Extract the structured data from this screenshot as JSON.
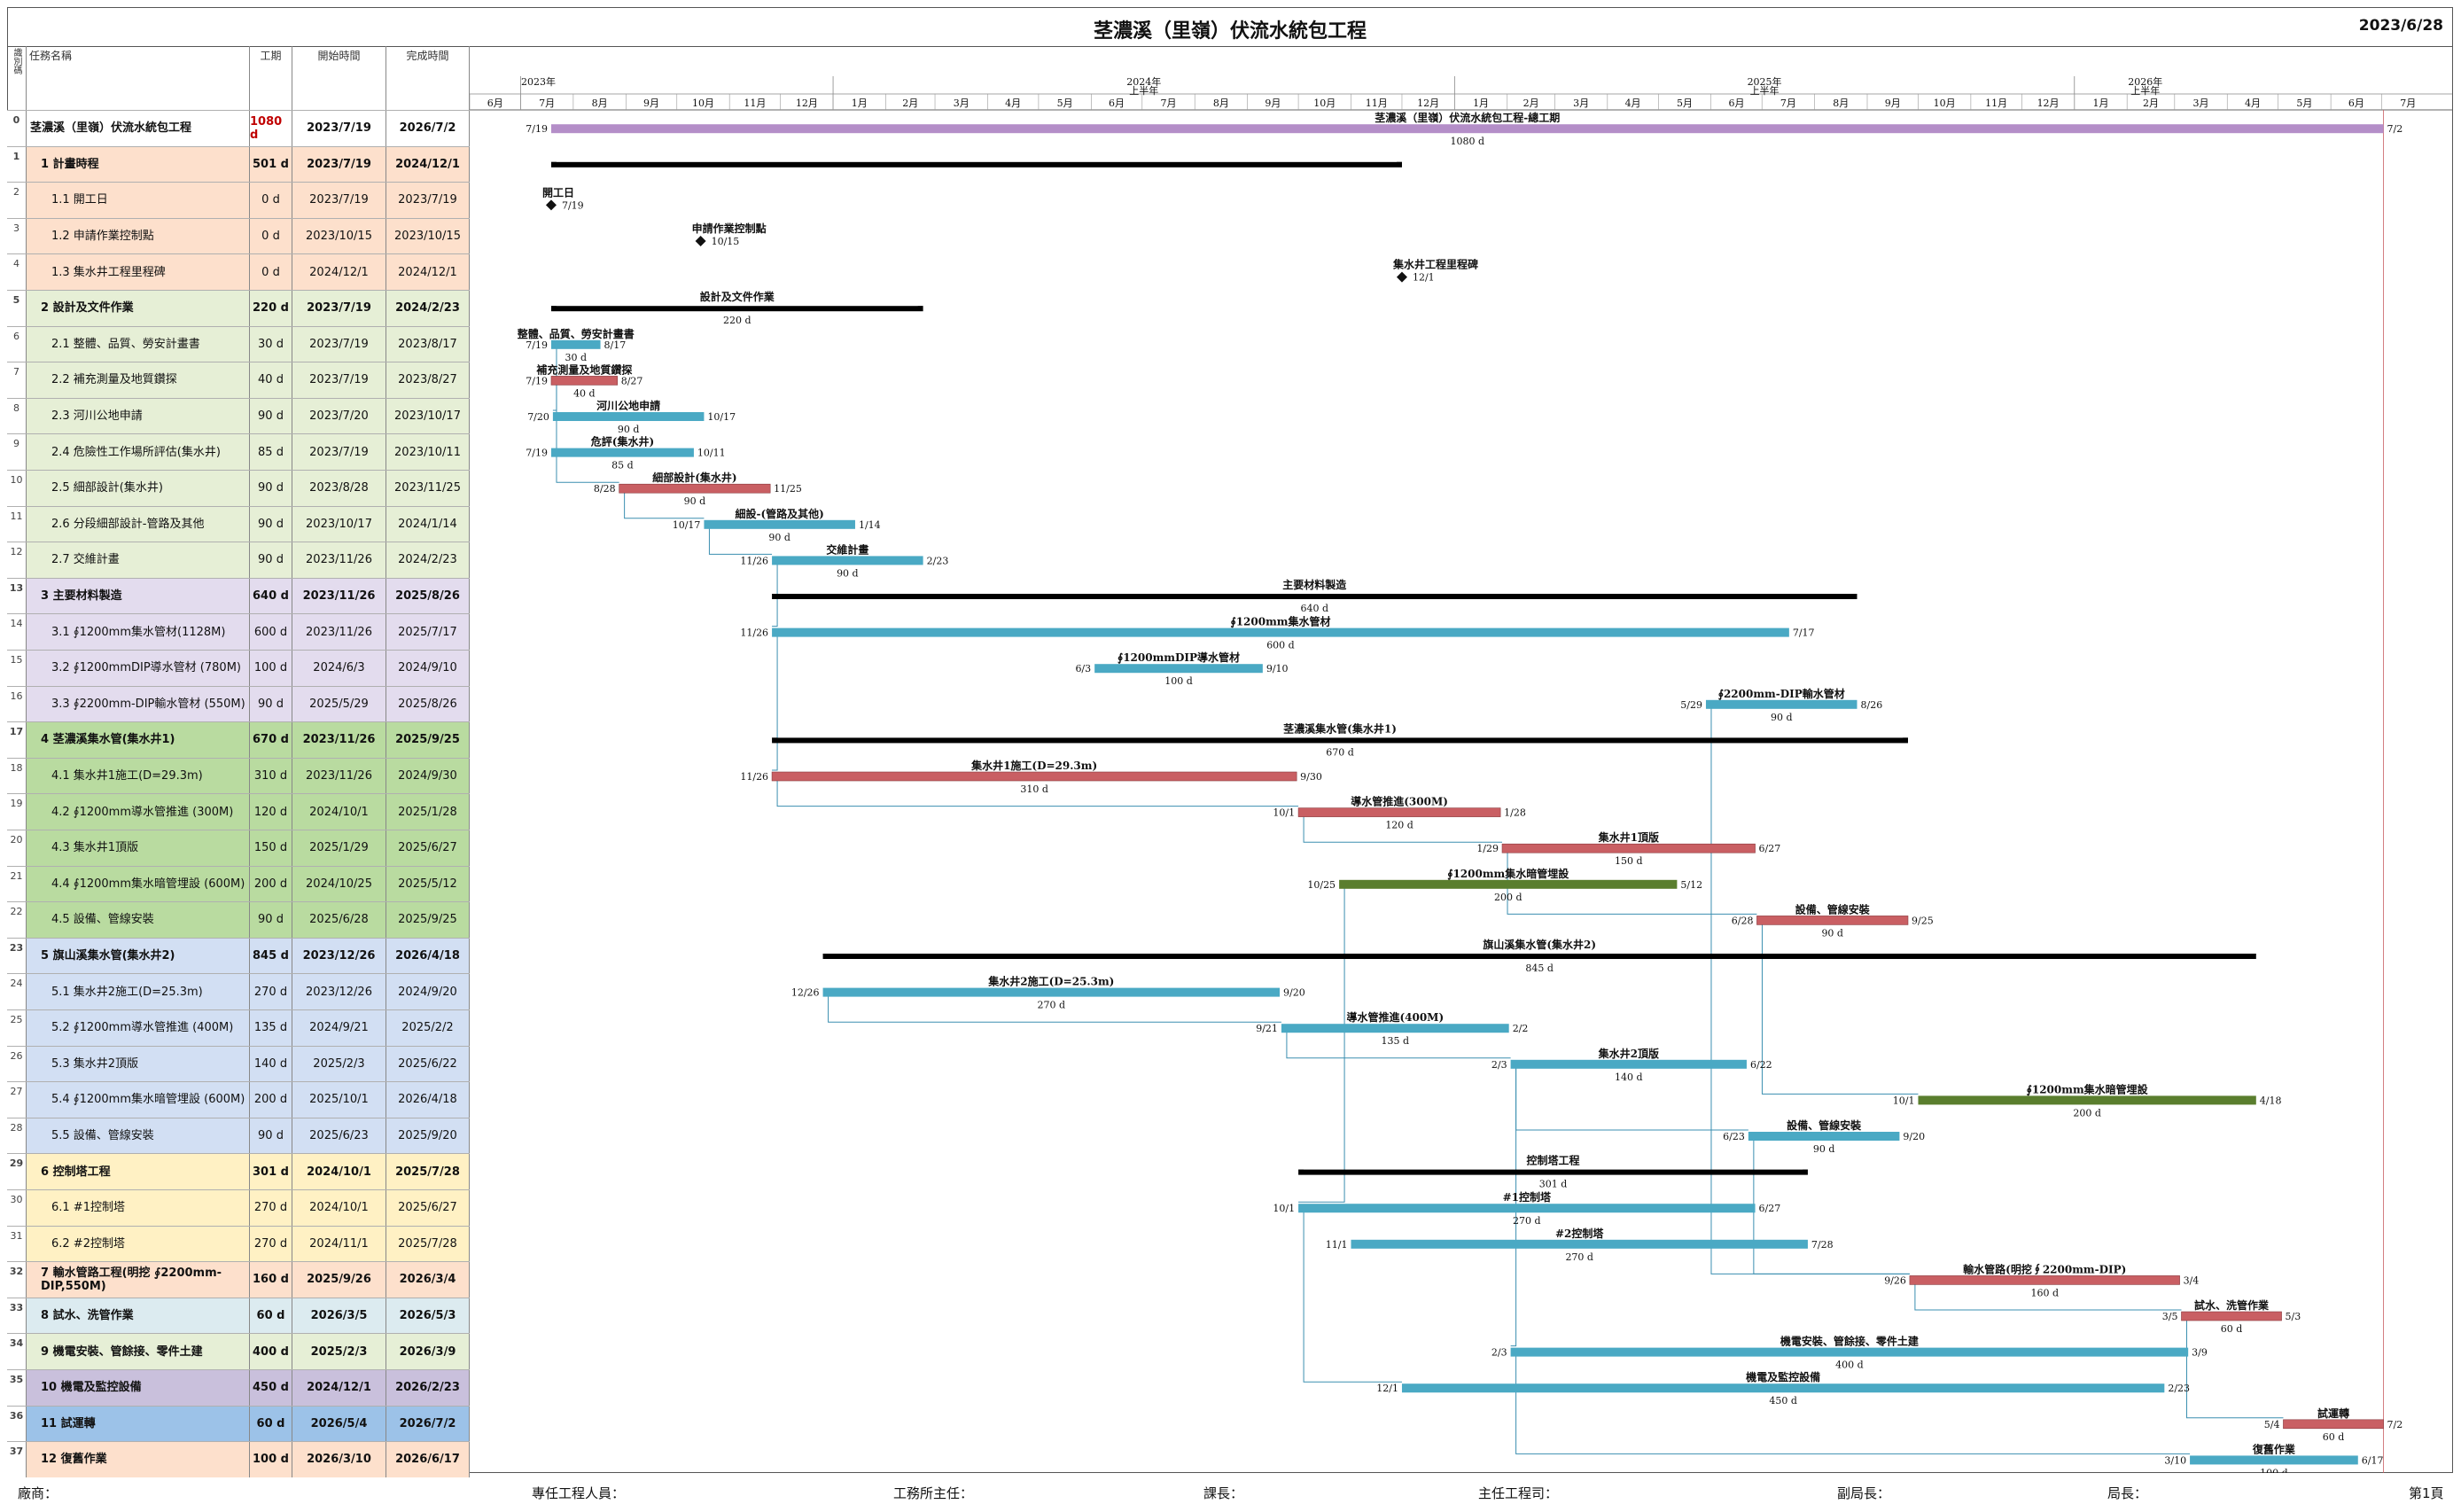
{
  "header": {
    "title": "茎濃溪（里嶺）伏流水統包工程",
    "date": "2023/6/28"
  },
  "table_headers": {
    "id": "識別碼",
    "name": "任務名稱",
    "duration": "工期",
    "start": "開始時間",
    "finish": "完成時間"
  },
  "timeline": {
    "years": [
      {
        "label": "2023年",
        "half": "",
        "date": "2023-07-01"
      },
      {
        "label": "2024年",
        "half": "上半年",
        "date": "2024-01-01"
      },
      {
        "label": "2025年",
        "half": "上半年",
        "date": "2025-01-01"
      },
      {
        "label": "2026年",
        "half": "上半年",
        "date": "2026-01-01"
      }
    ],
    "months": [
      "6月",
      "7月",
      "8月",
      "9月",
      "10月",
      "11月",
      "12月",
      "1月",
      "2月",
      "3月",
      "4月",
      "5月",
      "6月",
      "7月",
      "8月",
      "9月",
      "10月",
      "11月",
      "12月",
      "1月",
      "2月",
      "3月",
      "4月",
      "5月",
      "6月",
      "7月",
      "8月",
      "9月",
      "10月",
      "11月",
      "12月",
      "1月",
      "2月",
      "3月",
      "4月",
      "5月",
      "6月",
      "7月"
    ]
  },
  "colors": {
    "summary_bar": "#000000",
    "project_bar": "#b48ec8",
    "task_blue": "#4aa9c4",
    "task_red": "#c95f63",
    "task_green": "#5a7e2e",
    "link": "#3b8fb0",
    "group_plan": "#fde0cc",
    "group_design": "#e6efd6",
    "group_material": "#e3dcee",
    "group_well1": "#b9dba0",
    "group_well2": "#d2dff3",
    "group_tower": "#fff1c4",
    "group_pipe": "#fde0cc",
    "group_wash": "#dcebf0",
    "group_mech": "#e6efd6",
    "group_monitor": "#c9c0dc",
    "group_trial": "#9cc2e8",
    "group_restore": "#fde0cc"
  },
  "tasks": [
    {
      "id": "0",
      "name": "茎濃溪（里嶺）伏流水統包工程",
      "dur": "1080 d",
      "start": "2023/7/19",
      "finish": "2026/7/2",
      "s": "2023-07-19",
      "f": "2026-07-02",
      "type": "project",
      "bar_label": "茎濃溪（里嶺）伏流水統包工程-總工期",
      "bl": "7/19",
      "br": "7/2",
      "group": "none",
      "summary": true
    },
    {
      "id": "1",
      "name": "1 計畫時程",
      "dur": "501 d",
      "start": "2023/7/19",
      "finish": "2024/12/1",
      "s": "2023-07-19",
      "f": "2024-12-01",
      "type": "summary",
      "bar_label": "",
      "bl": "",
      "br": "",
      "group": "plan",
      "summary": true,
      "hide_dur": true
    },
    {
      "id": "2",
      "name": "1.1 開工日",
      "dur": "0 d",
      "start": "2023/7/19",
      "finish": "2023/7/19",
      "s": "2023-07-19",
      "f": "2023-07-19",
      "type": "milestone",
      "bar_label": "開工日",
      "bl": "",
      "br": "7/19",
      "group": "plan"
    },
    {
      "id": "3",
      "name": "1.2 申請作業控制點",
      "dur": "0 d",
      "start": "2023/10/15",
      "finish": "2023/10/15",
      "s": "2023-10-15",
      "f": "2023-10-15",
      "type": "milestone",
      "bar_label": "申請作業控制點",
      "bl": "",
      "br": "10/15",
      "group": "plan"
    },
    {
      "id": "4",
      "name": "1.3 集水井工程里程碑",
      "dur": "0 d",
      "start": "2024/12/1",
      "finish": "2024/12/1",
      "s": "2024-12-01",
      "f": "2024-12-01",
      "type": "milestone",
      "bar_label": "集水井工程里程碑",
      "bl": "",
      "br": "12/1",
      "group": "plan"
    },
    {
      "id": "5",
      "name": "2 設計及文件作業",
      "dur": "220 d",
      "start": "2023/7/19",
      "finish": "2024/2/23",
      "s": "2023-07-19",
      "f": "2024-02-23",
      "type": "summary",
      "bar_label": "設計及文件作業",
      "bl": "",
      "br": "",
      "group": "design",
      "summary": true
    },
    {
      "id": "6",
      "name": "2.1 整體、品質、勞安計畫書",
      "dur": "30 d",
      "start": "2023/7/19",
      "finish": "2023/8/17",
      "s": "2023-07-19",
      "f": "2023-08-17",
      "type": "blue",
      "bar_label": "整體、品質、勞安計畫書",
      "bl": "7/19",
      "br": "8/17",
      "group": "design"
    },
    {
      "id": "7",
      "name": "2.2 補充測量及地質鑽探",
      "dur": "40 d",
      "start": "2023/7/19",
      "finish": "2023/8/27",
      "s": "2023-07-19",
      "f": "2023-08-27",
      "type": "red",
      "bar_label": "補充測量及地質鑽探",
      "bl": "7/19",
      "br": "8/27",
      "group": "design"
    },
    {
      "id": "8",
      "name": "2.3 河川公地申請",
      "dur": "90 d",
      "start": "2023/7/20",
      "finish": "2023/10/17",
      "s": "2023-07-20",
      "f": "2023-10-17",
      "type": "blue",
      "bar_label": "河川公地申請",
      "bl": "7/20",
      "br": "10/17",
      "group": "design"
    },
    {
      "id": "9",
      "name": "2.4 危險性工作場所評估(集水井)",
      "dur": "85 d",
      "start": "2023/7/19",
      "finish": "2023/10/11",
      "s": "2023-07-19",
      "f": "2023-10-11",
      "type": "blue",
      "bar_label": "危評(集水井)",
      "bl": "7/19",
      "br": "10/11",
      "group": "design"
    },
    {
      "id": "10",
      "name": "2.5 細部設計(集水井)",
      "dur": "90 d",
      "start": "2023/8/28",
      "finish": "2023/11/25",
      "s": "2023-08-28",
      "f": "2023-11-25",
      "type": "red",
      "bar_label": "細部設計(集水井)",
      "bl": "8/28",
      "br": "11/25",
      "group": "design"
    },
    {
      "id": "11",
      "name": "2.6 分段細部設計-管路及其他",
      "dur": "90 d",
      "start": "2023/10/17",
      "finish": "2024/1/14",
      "s": "2023-10-17",
      "f": "2024-01-14",
      "type": "blue",
      "bar_label": "細設-(管路及其他)",
      "bl": "10/17",
      "br": "1/14",
      "group": "design"
    },
    {
      "id": "12",
      "name": "2.7 交維計畫",
      "dur": "90 d",
      "start": "2023/11/26",
      "finish": "2024/2/23",
      "s": "2023-11-26",
      "f": "2024-02-23",
      "type": "blue",
      "bar_label": "交維計畫",
      "bl": "11/26",
      "br": "2/23",
      "group": "design"
    },
    {
      "id": "13",
      "name": "3 主要材料製造",
      "dur": "640 d",
      "start": "2023/11/26",
      "finish": "2025/8/26",
      "s": "2023-11-26",
      "f": "2025-08-26",
      "type": "summary",
      "bar_label": "主要材料製造",
      "bl": "",
      "br": "",
      "group": "material",
      "summary": true
    },
    {
      "id": "14",
      "name": "3.1 ∮1200mm集水管材(1128M)",
      "dur": "600 d",
      "start": "2023/11/26",
      "finish": "2025/7/17",
      "s": "2023-11-26",
      "f": "2025-07-17",
      "type": "blue",
      "bar_label": "∮1200mm集水管材",
      "bl": "11/26",
      "br": "7/17",
      "group": "material"
    },
    {
      "id": "15",
      "name": "3.2 ∮1200mmDIP導水管材 (780M)",
      "dur": "100 d",
      "start": "2024/6/3",
      "finish": "2024/9/10",
      "s": "2024-06-03",
      "f": "2024-09-10",
      "type": "blue",
      "bar_label": "∮1200mmDIP導水管材",
      "bl": "6/3",
      "br": "9/10",
      "group": "material"
    },
    {
      "id": "16",
      "name": "3.3 ∮2200mm-DIP輸水管材 (550M)",
      "dur": "90 d",
      "start": "2025/5/29",
      "finish": "2025/8/26",
      "s": "2025-05-29",
      "f": "2025-08-26",
      "type": "blue",
      "bar_label": "∮2200mm-DIP輸水管材",
      "bl": "5/29",
      "br": "8/26",
      "group": "material"
    },
    {
      "id": "17",
      "name": "4 茎濃溪集水管(集水井1)",
      "dur": "670 d",
      "start": "2023/11/26",
      "finish": "2025/9/25",
      "s": "2023-11-26",
      "f": "2025-09-25",
      "type": "summary",
      "bar_label": "茎濃溪集水管(集水井1)",
      "bl": "",
      "br": "",
      "group": "well1",
      "summary": true
    },
    {
      "id": "18",
      "name": "4.1 集水井1施工(D=29.3m)",
      "dur": "310 d",
      "start": "2023/11/26",
      "finish": "2024/9/30",
      "s": "2023-11-26",
      "f": "2024-09-30",
      "type": "red",
      "bar_label": "集水井1施工(D=29.3m)",
      "bl": "11/26",
      "br": "9/30",
      "group": "well1"
    },
    {
      "id": "19",
      "name": "4.2 ∮1200mm導水管推進 (300M)",
      "dur": "120 d",
      "start": "2024/10/1",
      "finish": "2025/1/28",
      "s": "2024-10-01",
      "f": "2025-01-28",
      "type": "red",
      "bar_label": "導水管推進(300M)",
      "bl": "10/1",
      "br": "1/28",
      "group": "well1"
    },
    {
      "id": "20",
      "name": "4.3 集水井1頂版",
      "dur": "150 d",
      "start": "2025/1/29",
      "finish": "2025/6/27",
      "s": "2025-01-29",
      "f": "2025-06-27",
      "type": "red",
      "bar_label": "集水井1頂版",
      "bl": "1/29",
      "br": "6/27",
      "group": "well1"
    },
    {
      "id": "21",
      "name": "4.4 ∮1200mm集水暗管埋設 (600M)",
      "dur": "200 d",
      "start": "2024/10/25",
      "finish": "2025/5/12",
      "s": "2024-10-25",
      "f": "2025-05-12",
      "type": "green",
      "bar_label": "∮1200mm集水暗管埋設",
      "bl": "10/25",
      "br": "5/12",
      "group": "well1"
    },
    {
      "id": "22",
      "name": "4.5 設備、管線安裝",
      "dur": "90 d",
      "start": "2025/6/28",
      "finish": "2025/9/25",
      "s": "2025-06-28",
      "f": "2025-09-25",
      "type": "red",
      "bar_label": "設備、管線安裝",
      "bl": "6/28",
      "br": "9/25",
      "group": "well1"
    },
    {
      "id": "23",
      "name": "5 旗山溪集水管(集水井2)",
      "dur": "845 d",
      "start": "2023/12/26",
      "finish": "2026/4/18",
      "s": "2023-12-26",
      "f": "2026-04-18",
      "type": "summary",
      "bar_label": "旗山溪集水管(集水井2)",
      "bl": "",
      "br": "",
      "group": "well2",
      "summary": true
    },
    {
      "id": "24",
      "name": "5.1 集水井2施工(D=25.3m)",
      "dur": "270 d",
      "start": "2023/12/26",
      "finish": "2024/9/20",
      "s": "2023-12-26",
      "f": "2024-09-20",
      "type": "blue",
      "bar_label": "集水井2施工(D=25.3m)",
      "bl": "12/26",
      "br": "9/20",
      "group": "well2"
    },
    {
      "id": "25",
      "name": "5.2 ∮1200mm導水管推進 (400M)",
      "dur": "135 d",
      "start": "2024/9/21",
      "finish": "2025/2/2",
      "s": "2024-09-21",
      "f": "2025-02-02",
      "type": "blue",
      "bar_label": "導水管推進(400M)",
      "bl": "9/21",
      "br": "2/2",
      "group": "well2"
    },
    {
      "id": "26",
      "name": "5.3 集水井2頂版",
      "dur": "140 d",
      "start": "2025/2/3",
      "finish": "2025/6/22",
      "s": "2025-02-03",
      "f": "2025-06-22",
      "type": "blue",
      "bar_label": "集水井2頂版",
      "bl": "2/3",
      "br": "6/22",
      "group": "well2"
    },
    {
      "id": "27",
      "name": "5.4 ∮1200mm集水暗管埋設 (600M)",
      "dur": "200 d",
      "start": "2025/10/1",
      "finish": "2026/4/18",
      "s": "2025-10-01",
      "f": "2026-04-18",
      "type": "green",
      "bar_label": "∮1200mm集水暗管埋設",
      "bl": "10/1",
      "br": "4/18",
      "group": "well2"
    },
    {
      "id": "28",
      "name": "5.5 設備、管線安裝",
      "dur": "90 d",
      "start": "2025/6/23",
      "finish": "2025/9/20",
      "s": "2025-06-23",
      "f": "2025-09-20",
      "type": "blue",
      "bar_label": "設備、管線安裝",
      "bl": "6/23",
      "br": "9/20",
      "group": "well2"
    },
    {
      "id": "29",
      "name": "6 控制塔工程",
      "dur": "301 d",
      "start": "2024/10/1",
      "finish": "2025/7/28",
      "s": "2024-10-01",
      "f": "2025-07-28",
      "type": "summary",
      "bar_label": "控制塔工程",
      "bl": "",
      "br": "",
      "group": "tower",
      "summary": true
    },
    {
      "id": "30",
      "name": "6.1 #1控制塔",
      "dur": "270 d",
      "start": "2024/10/1",
      "finish": "2025/6/27",
      "s": "2024-10-01",
      "f": "2025-06-27",
      "type": "blue",
      "bar_label": "#1控制塔",
      "bl": "10/1",
      "br": "6/27",
      "group": "tower"
    },
    {
      "id": "31",
      "name": "6.2 #2控制塔",
      "dur": "270 d",
      "start": "2024/11/1",
      "finish": "2025/7/28",
      "s": "2024-11-01",
      "f": "2025-07-28",
      "type": "blue",
      "bar_label": "#2控制塔",
      "bl": "11/1",
      "br": "7/28",
      "group": "tower"
    },
    {
      "id": "32",
      "name": "7 輸水管路工程(明挖 ∮2200mm-DIP,550M)",
      "dur": "160 d",
      "start": "2025/9/26",
      "finish": "2026/3/4",
      "s": "2025-09-26",
      "f": "2026-03-04",
      "type": "red",
      "bar_label": "輸水管路(明挖∮2200mm-DIP)",
      "bl": "9/26",
      "br": "3/4",
      "group": "pipe",
      "summary": true
    },
    {
      "id": "33",
      "name": "8 試水、洗管作業",
      "dur": "60 d",
      "start": "2026/3/5",
      "finish": "2026/5/3",
      "s": "2026-03-05",
      "f": "2026-05-03",
      "type": "red",
      "bar_label": "試水、洗管作業",
      "bl": "3/5",
      "br": "5/3",
      "group": "wash",
      "summary": true
    },
    {
      "id": "34",
      "name": "9 機電安裝、管餘接、零件土建",
      "dur": "400 d",
      "start": "2025/2/3",
      "finish": "2026/3/9",
      "s": "2025-02-03",
      "f": "2026-03-09",
      "type": "blue",
      "bar_label": "機電安裝、管餘接、零件土建",
      "bl": "2/3",
      "br": "3/9",
      "group": "mech",
      "summary": true
    },
    {
      "id": "35",
      "name": "10 機電及監控設備",
      "dur": "450 d",
      "start": "2024/12/1",
      "finish": "2026/2/23",
      "s": "2024-12-01",
      "f": "2026-02-23",
      "type": "blue",
      "bar_label": "機電及監控設備",
      "bl": "12/1",
      "br": "2/23",
      "group": "monitor",
      "summary": true
    },
    {
      "id": "36",
      "name": "11 試運轉",
      "dur": "60 d",
      "start": "2026/5/4",
      "finish": "2026/7/2",
      "s": "2026-05-04",
      "f": "2026-07-02",
      "type": "red",
      "bar_label": "試運轉",
      "bl": "5/4",
      "br": "7/2",
      "group": "trial",
      "summary": true
    },
    {
      "id": "37",
      "name": "12 復舊作業",
      "dur": "100 d",
      "start": "2026/3/10",
      "finish": "2026/6/17",
      "s": "2026-03-10",
      "f": "2026-06-17",
      "type": "blue",
      "bar_label": "復舊作業",
      "bl": "3/10",
      "br": "6/17",
      "group": "restore",
      "summary": true
    }
  ],
  "footer": [
    {
      "label": "廠商："
    },
    {
      "label": "專任工程人員："
    },
    {
      "label": "工務所主任："
    },
    {
      "label": "課長："
    },
    {
      "label": "主任工程司："
    },
    {
      "label": "副局長："
    },
    {
      "label": "局長："
    },
    {
      "label": "第1頁"
    }
  ]
}
